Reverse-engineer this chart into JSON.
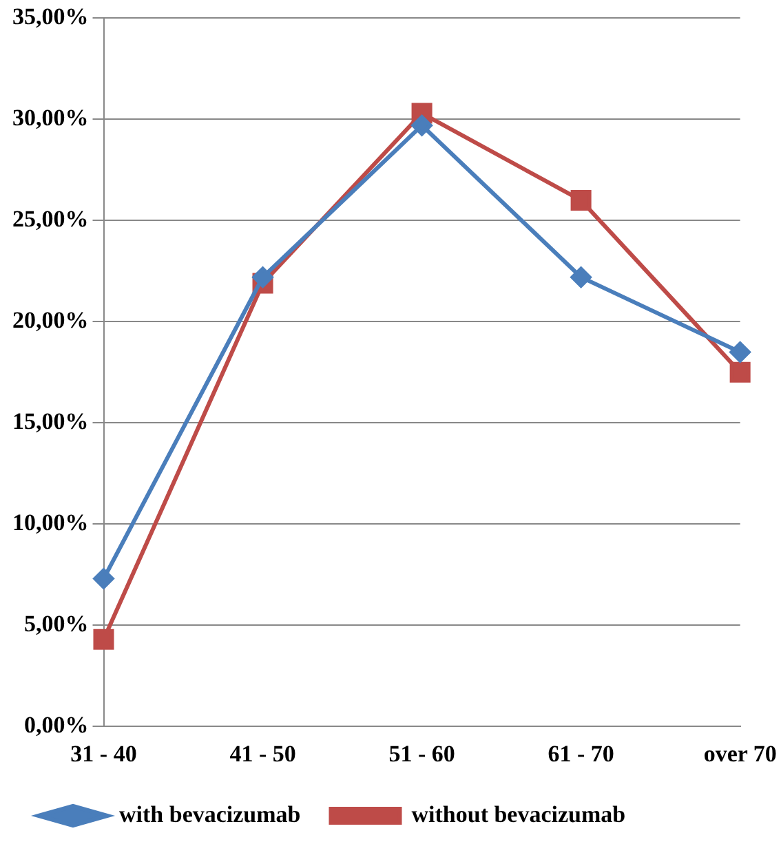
{
  "chart_data": {
    "type": "line",
    "categories": [
      "31 - 40",
      "41 - 50",
      "51 - 60",
      "61 - 70",
      "over 70"
    ],
    "series": [
      {
        "name": "with bevacizumab",
        "color": "#4a7ebb",
        "marker": "diamond",
        "values": [
          7.3,
          22.2,
          29.7,
          22.2,
          18.5
        ]
      },
      {
        "name": "without bevacizumab",
        "color": "#be4b48",
        "marker": "square",
        "values": [
          4.3,
          21.9,
          30.3,
          26.0,
          17.5
        ]
      }
    ],
    "ylim": [
      0,
      35
    ],
    "yticks": [
      {
        "value": 0,
        "label": "0,00%"
      },
      {
        "value": 5,
        "label": "5,00%"
      },
      {
        "value": 10,
        "label": "10,00%"
      },
      {
        "value": 15,
        "label": "15,00%"
      },
      {
        "value": 20,
        "label": "20,00%"
      },
      {
        "value": 25,
        "label": "25,00%"
      },
      {
        "value": 30,
        "label": "30,00%"
      },
      {
        "value": 35,
        "label": "35,00%"
      }
    ],
    "grid": "y",
    "legend": "bottom",
    "line_style": "solid"
  }
}
